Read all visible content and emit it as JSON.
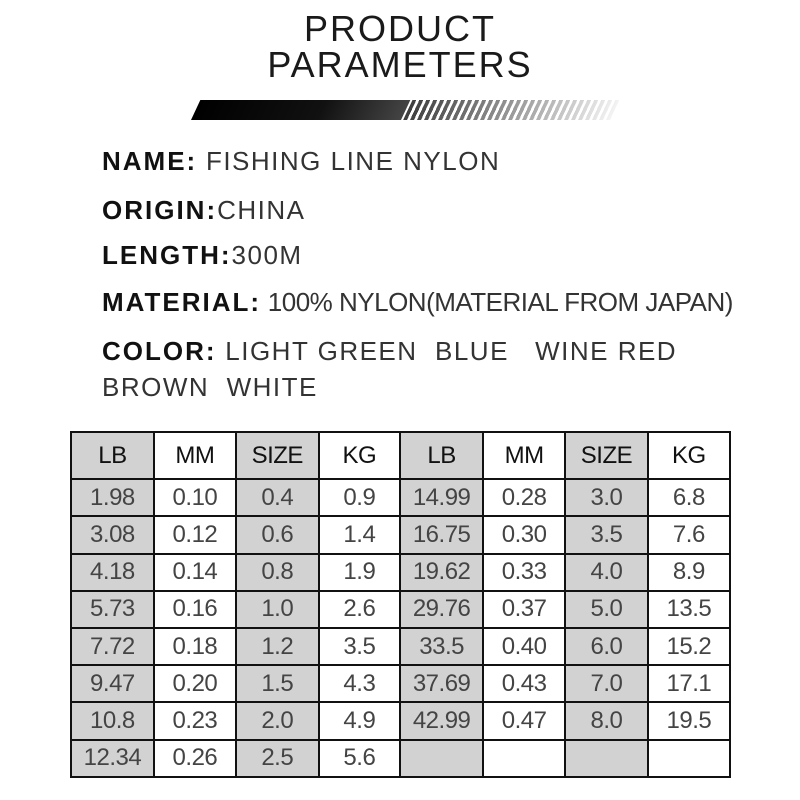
{
  "title_lines": [
    "PRODUCT",
    "PARAMETERS"
  ],
  "specs": {
    "name": {
      "label": "NAME:",
      "value": " FISHING LINE NYLON"
    },
    "origin": {
      "label": "ORIGIN:",
      "value": "CHINA"
    },
    "length": {
      "label": "LENGTH:",
      "value": "300M"
    },
    "material": {
      "label": "MATERIAL:",
      "value": " 100% NYLON(MATERIAL FROM JAPAN)"
    },
    "color": {
      "label": "COLOR:",
      "value": " LIGHT GREEN  BLUE   WINE RED",
      "value_line2": "BROWN  WHITE"
    }
  },
  "table": {
    "headers": [
      "LB",
      "MM",
      "SIZE",
      "KG",
      "LB",
      "MM",
      "SIZE",
      "KG"
    ],
    "rows": [
      [
        "1.98",
        "0.10",
        "0.4",
        "0.9",
        "14.99",
        "0.28",
        "3.0",
        "6.8"
      ],
      [
        "3.08",
        "0.12",
        "0.6",
        "1.4",
        "16.75",
        "0.30",
        "3.5",
        "7.6"
      ],
      [
        "4.18",
        "0.14",
        "0.8",
        "1.9",
        "19.62",
        "0.33",
        "4.0",
        "8.9"
      ],
      [
        "5.73",
        "0.16",
        "1.0",
        "2.6",
        "29.76",
        "0.37",
        "5.0",
        "13.5"
      ],
      [
        "7.72",
        "0.18",
        "1.2",
        "3.5",
        "33.5",
        "0.40",
        "6.0",
        "15.2"
      ],
      [
        "9.47",
        "0.20",
        "1.5",
        "4.3",
        "37.69",
        "0.43",
        "7.0",
        "17.1"
      ],
      [
        "10.8",
        "0.23",
        "2.0",
        "4.9",
        "42.99",
        "0.47",
        "8.0",
        "19.5"
      ],
      [
        "12.34",
        "0.26",
        "2.5",
        "5.6",
        "",
        "",
        "",
        ""
      ]
    ]
  },
  "colors": {
    "shaded_column": "#d2d2d2",
    "border": "#111111"
  }
}
